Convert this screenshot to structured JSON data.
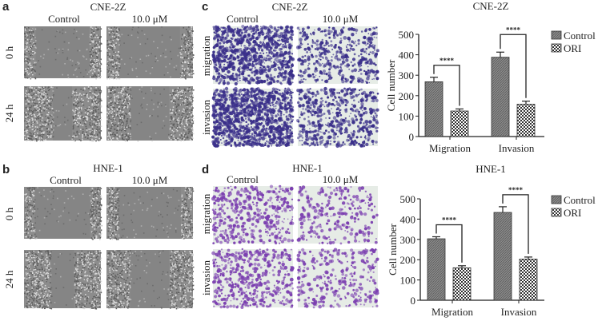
{
  "panels": {
    "a": {
      "letter": "a",
      "cell_line": "CNE-2Z",
      "col_labels": [
        "Control",
        "10.0 μM"
      ],
      "row_labels": [
        "0 h",
        "24 h"
      ]
    },
    "b": {
      "letter": "b",
      "cell_line": "HNE-1",
      "col_labels": [
        "Control",
        "10.0 μM"
      ],
      "row_labels": [
        "0 h",
        "24 h"
      ]
    },
    "c": {
      "letter": "c",
      "cell_line": "CNE-2Z",
      "col_labels": [
        "Control",
        "10.0 μM"
      ],
      "row_labels": [
        "migration",
        "invasion"
      ]
    },
    "d": {
      "letter": "d",
      "cell_line": "HNE-1",
      "col_labels": [
        "Control",
        "10.0 μM"
      ],
      "row_labels": [
        "migration",
        "invasion"
      ]
    }
  },
  "colors": {
    "stain_cne": "#3a2f8a",
    "stain_hne": "#7b3fb0",
    "control_bar": "#8a8a8a",
    "ori_bar": "#ffffff"
  },
  "chart_data": [
    {
      "type": "bar",
      "title": "CNE-2Z",
      "ylabel": "Cell number",
      "xlabel": "",
      "categories": [
        "Migration",
        "Invasion"
      ],
      "ylim": [
        0,
        500
      ],
      "yticks": [
        0,
        100,
        200,
        300,
        400,
        500
      ],
      "legend": "right",
      "series": [
        {
          "name": "Control",
          "values": [
            268,
            388
          ],
          "errors": [
            22,
            25
          ]
        },
        {
          "name": "ORI",
          "values": [
            125,
            158
          ],
          "errors": [
            10,
            15
          ]
        }
      ],
      "significance": [
        "****",
        "****"
      ]
    },
    {
      "type": "bar",
      "title": "HNE-1",
      "ylabel": "Cell number",
      "xlabel": "",
      "categories": [
        "Migration",
        "Invasion"
      ],
      "ylim": [
        0,
        500
      ],
      "yticks": [
        0,
        100,
        200,
        300,
        400,
        500
      ],
      "legend": "right",
      "series": [
        {
          "name": "Control",
          "values": [
            303,
            433
          ],
          "errors": [
            10,
            28
          ]
        },
        {
          "name": "ORI",
          "values": [
            160,
            203
          ],
          "errors": [
            10,
            10
          ]
        }
      ],
      "significance": [
        "****",
        "****"
      ]
    }
  ]
}
